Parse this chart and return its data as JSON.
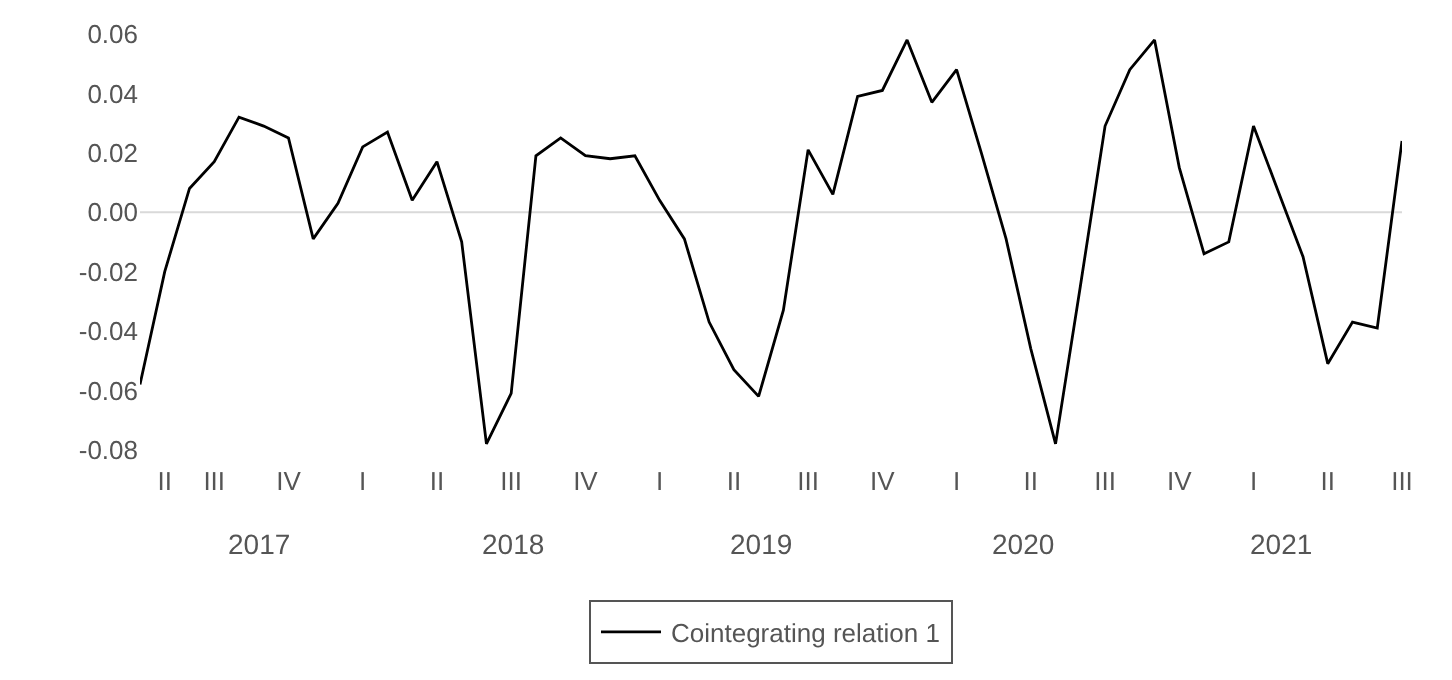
{
  "chart_data": {
    "type": "line",
    "categories": [
      null,
      "II",
      null,
      "III",
      null,
      null,
      "IV",
      null,
      null,
      "I",
      null,
      null,
      "II",
      null,
      null,
      "III",
      null,
      null,
      "IV",
      null,
      null,
      "I",
      null,
      null,
      "II",
      null,
      null,
      "III",
      null,
      null,
      "IV",
      null,
      null,
      "I",
      null,
      null,
      "II",
      null,
      null,
      "III",
      null,
      null,
      "IV",
      null,
      null,
      "I",
      null,
      null,
      "II",
      null,
      null,
      "III"
    ],
    "series": [
      {
        "name": "Cointegrating relation 1",
        "color": "#000000",
        "values": [
          -0.058,
          -0.02,
          0.008,
          0.017,
          0.032,
          0.029,
          0.025,
          -0.009,
          0.003,
          0.022,
          0.027,
          0.004,
          0.017,
          -0.01,
          -0.078,
          -0.061,
          0.019,
          0.025,
          0.019,
          0.018,
          0.019,
          0.004,
          -0.009,
          -0.037,
          -0.053,
          -0.062,
          -0.033,
          0.021,
          0.006,
          0.039,
          0.041,
          0.058,
          0.037,
          0.048,
          0.02,
          -0.009,
          -0.046,
          -0.078,
          -0.025,
          0.029,
          0.048,
          0.058,
          0.015,
          -0.014,
          -0.01,
          0.029,
          0.007,
          -0.015,
          -0.051,
          -0.037,
          -0.039,
          0.024
        ]
      }
    ],
    "annotations": [
      "2017",
      "2018",
      "2019",
      "2020",
      "2021"
    ],
    "ylim": [
      -0.08,
      0.06
    ],
    "yticks": [
      {
        "value": -0.08,
        "label": "-0.08"
      },
      {
        "value": -0.06,
        "label": "-0.06"
      },
      {
        "value": -0.04,
        "label": "-0.04"
      },
      {
        "value": -0.02,
        "label": "-0.02"
      },
      {
        "value": 0,
        "label": "0.00"
      },
      {
        "value": 0.02,
        "label": "0.02"
      },
      {
        "value": 0.04,
        "label": "0.04"
      },
      {
        "value": 0.06,
        "label": "0.06"
      }
    ],
    "ref_lines": [
      {
        "axis": "y",
        "value": 0,
        "color": "#d9d9d9"
      }
    ],
    "grid": false,
    "legend": "bottom",
    "marker": "none",
    "line_style": "solid"
  }
}
